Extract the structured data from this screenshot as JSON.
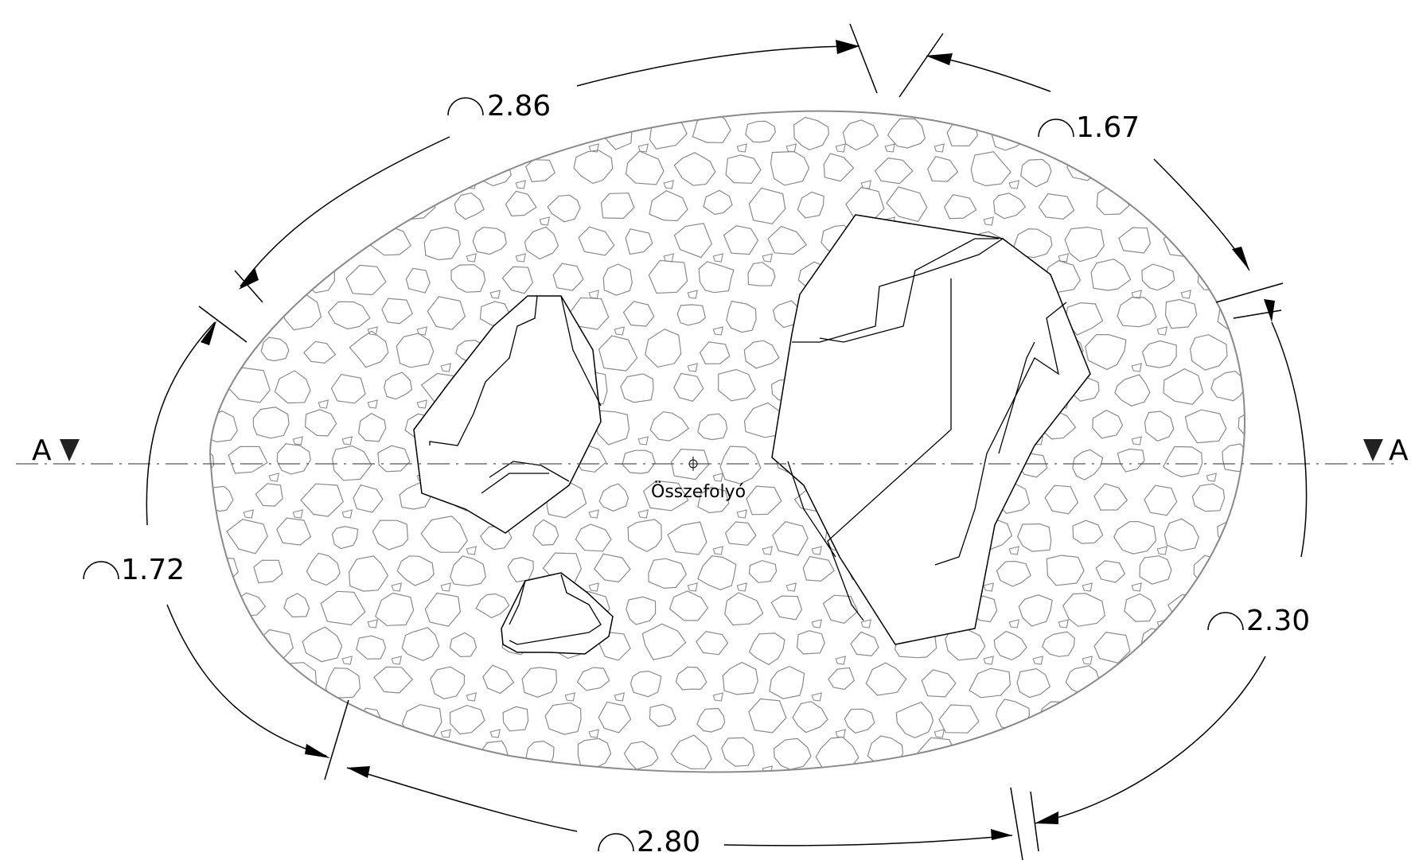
{
  "drawing": {
    "center_label": "Összefolyó",
    "section_marker_left": "A",
    "section_marker_right": "A",
    "arc_symbol": "arc-length-symbol",
    "dimensions": [
      {
        "id": "top-left",
        "value": "2.86"
      },
      {
        "id": "top-right",
        "value": "1.67"
      },
      {
        "id": "left",
        "value": "1.72"
      },
      {
        "id": "right",
        "value": "2.30"
      },
      {
        "id": "bottom",
        "value": "2.80"
      }
    ],
    "colors": {
      "line": "#000000",
      "hatch": "#8a8a8a",
      "background": "#ffffff"
    }
  }
}
